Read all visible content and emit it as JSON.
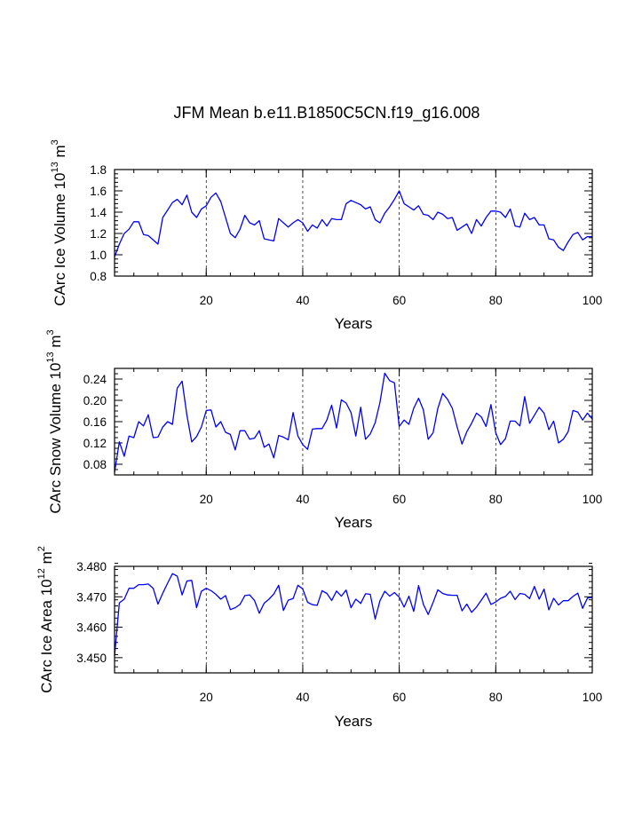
{
  "page_title": "JFM Mean b.e11.B1850C5CN.f19_g16.008",
  "chart_data": [
    {
      "type": "line",
      "title": "",
      "xlabel": "Years",
      "ylabel_main": "CArc Ice Volume 10",
      "ylabel_exp": "13",
      "ylabel_unit": " m",
      "ylabel_unit_exp": "3",
      "xlim": [
        1,
        100
      ],
      "ylim": [
        0.8,
        1.8
      ],
      "xticks": [
        20,
        40,
        60,
        80,
        100
      ],
      "xtick_labels": [
        "20",
        "40",
        "60",
        "80",
        "100"
      ],
      "yticks": [
        0.8,
        1.0,
        1.2,
        1.4,
        1.6,
        1.8
      ],
      "ytick_labels": [
        "0.8",
        "1.0",
        "1.2",
        "1.4",
        "1.6",
        "1.8"
      ],
      "ymin_step": 0.04,
      "grid_x": [
        20,
        40,
        60,
        80
      ],
      "color": "#0000ff",
      "series": [
        {
          "name": "CArc Ice Volume",
          "values": [
            0.98,
            1.1,
            1.2,
            1.24,
            1.31,
            1.31,
            1.19,
            1.18,
            1.14,
            1.1,
            1.35,
            1.42,
            1.49,
            1.52,
            1.47,
            1.56,
            1.4,
            1.35,
            1.43,
            1.46,
            1.54,
            1.58,
            1.5,
            1.35,
            1.2,
            1.16,
            1.24,
            1.37,
            1.3,
            1.28,
            1.32,
            1.15,
            1.14,
            1.13,
            1.34,
            1.3,
            1.26,
            1.3,
            1.33,
            1.3,
            1.22,
            1.28,
            1.25,
            1.33,
            1.27,
            1.34,
            1.33,
            1.33,
            1.48,
            1.51,
            1.49,
            1.47,
            1.43,
            1.45,
            1.33,
            1.3,
            1.39,
            1.45,
            1.52,
            1.6,
            1.48,
            1.45,
            1.42,
            1.46,
            1.38,
            1.37,
            1.33,
            1.4,
            1.38,
            1.34,
            1.35,
            1.23,
            1.26,
            1.29,
            1.2,
            1.33,
            1.27,
            1.35,
            1.41,
            1.41,
            1.4,
            1.35,
            1.43,
            1.27,
            1.26,
            1.39,
            1.33,
            1.35,
            1.28,
            1.28,
            1.15,
            1.14,
            1.07,
            1.04,
            1.12,
            1.19,
            1.21,
            1.14,
            1.17,
            1.17
          ]
        }
      ]
    },
    {
      "type": "line",
      "title": "",
      "xlabel": "Years",
      "ylabel_main": "CArc Snow Volume 10",
      "ylabel_exp": "13",
      "ylabel_unit": " m",
      "ylabel_unit_exp": "3",
      "xlim": [
        1,
        100
      ],
      "ylim": [
        0.06,
        0.26
      ],
      "xticks": [
        20,
        40,
        60,
        80,
        100
      ],
      "xtick_labels": [
        "20",
        "40",
        "60",
        "80",
        "100"
      ],
      "yticks": [
        0.08,
        0.12,
        0.16,
        0.2,
        0.24
      ],
      "ytick_labels": [
        "0.08",
        "0.12",
        "0.16",
        "0.20",
        "0.24"
      ],
      "ymin_step": 0.01,
      "grid_x": [
        20,
        40,
        60,
        80
      ],
      "color": "#0000ff",
      "series": [
        {
          "name": "CArc Snow Volume",
          "values": [
            0.065,
            0.122,
            0.095,
            0.133,
            0.13,
            0.16,
            0.152,
            0.173,
            0.13,
            0.131,
            0.15,
            0.16,
            0.155,
            0.223,
            0.236,
            0.172,
            0.122,
            0.132,
            0.15,
            0.181,
            0.182,
            0.15,
            0.16,
            0.14,
            0.136,
            0.107,
            0.143,
            0.143,
            0.127,
            0.129,
            0.143,
            0.112,
            0.118,
            0.092,
            0.134,
            0.131,
            0.126,
            0.177,
            0.133,
            0.117,
            0.108,
            0.146,
            0.147,
            0.147,
            0.163,
            0.191,
            0.148,
            0.201,
            0.195,
            0.177,
            0.133,
            0.187,
            0.127,
            0.137,
            0.158,
            0.196,
            0.251,
            0.237,
            0.233,
            0.151,
            0.163,
            0.155,
            0.185,
            0.204,
            0.182,
            0.127,
            0.139,
            0.185,
            0.213,
            0.202,
            0.185,
            0.15,
            0.118,
            0.141,
            0.157,
            0.176,
            0.169,
            0.151,
            0.192,
            0.139,
            0.117,
            0.128,
            0.161,
            0.161,
            0.152,
            0.207,
            0.157,
            0.172,
            0.187,
            0.176,
            0.145,
            0.161,
            0.12,
            0.127,
            0.141,
            0.181,
            0.178,
            0.163,
            0.176,
            0.165
          ]
        }
      ]
    },
    {
      "type": "line",
      "title": "",
      "xlabel": "Years",
      "ylabel_main": "CArc Ice Area 10",
      "ylabel_exp": "12",
      "ylabel_unit": " m",
      "ylabel_unit_exp": "2",
      "xlim": [
        1,
        100
      ],
      "ylim": [
        3.445,
        3.48
      ],
      "xticks": [
        20,
        40,
        60,
        80,
        100
      ],
      "xtick_labels": [
        "20",
        "40",
        "60",
        "80",
        "100"
      ],
      "yticks": [
        3.45,
        3.46,
        3.47,
        3.48
      ],
      "ytick_labels": [
        "3.450",
        "3.460",
        "3.470",
        "3.480"
      ],
      "ymin_step": 0.002,
      "grid_x": [
        20,
        40,
        60,
        80
      ],
      "color": "#0000ff",
      "series": [
        {
          "name": "CArc Ice Area",
          "values": [
            3.4505,
            3.468,
            3.4692,
            3.4728,
            3.4728,
            3.474,
            3.474,
            3.4742,
            3.4728,
            3.4676,
            3.4712,
            3.4745,
            3.4776,
            3.4768,
            3.4706,
            3.4752,
            3.4754,
            3.4664,
            3.4718,
            3.4728,
            3.472,
            3.4708,
            3.4692,
            3.4704,
            3.4658,
            3.4664,
            3.4675,
            3.4704,
            3.4706,
            3.4688,
            3.4646,
            3.4679,
            3.4692,
            3.4709,
            3.4738,
            3.4655,
            3.4689,
            3.4694,
            3.4738,
            3.4726,
            3.4682,
            3.4674,
            3.4672,
            3.472,
            3.4711,
            3.4688,
            3.4719,
            3.4702,
            3.4722,
            3.4664,
            3.4692,
            3.4678,
            3.471,
            3.4708,
            3.4627,
            3.4687,
            3.4718,
            3.4702,
            3.4714,
            3.4699,
            3.4666,
            3.4702,
            3.4652,
            3.4737,
            3.4675,
            3.4642,
            3.4681,
            3.4723,
            3.4711,
            3.4706,
            3.4705,
            3.4705,
            3.4654,
            3.4676,
            3.4649,
            3.4666,
            3.4689,
            3.4712,
            3.4675,
            3.4683,
            3.4695,
            3.4701,
            3.4718,
            3.4691,
            3.4711,
            3.4708,
            3.4694,
            3.4734,
            3.4692,
            3.4725,
            3.4657,
            3.4695,
            3.4673,
            3.4687,
            3.4687,
            3.4701,
            3.4712,
            3.4662,
            3.4696,
            3.4698
          ]
        }
      ]
    }
  ]
}
